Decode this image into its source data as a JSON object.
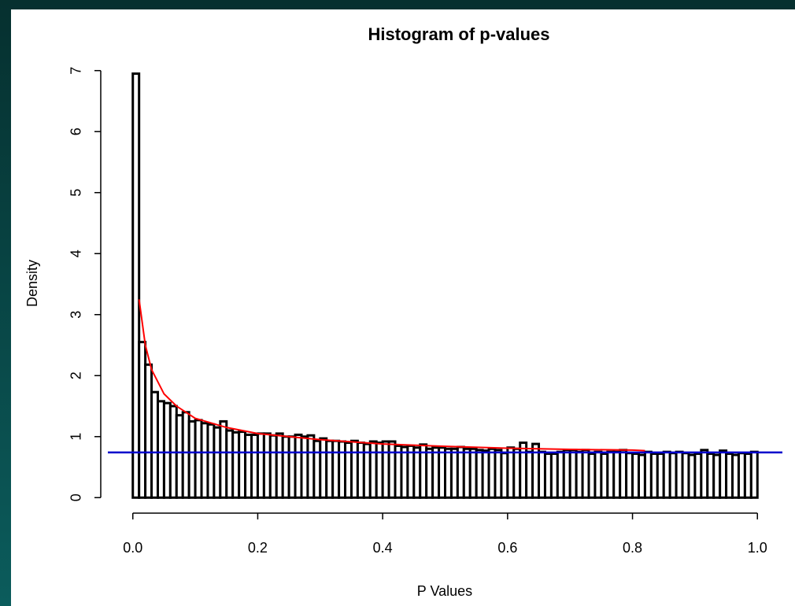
{
  "chart_data": {
    "type": "histogram",
    "title": "Histogram of p-values",
    "x_label": "P Values",
    "y_label": "Density",
    "bins": [
      0,
      0.01,
      0.02,
      0.03,
      0.04,
      0.05,
      0.06,
      0.07,
      0.08,
      0.09,
      0.1,
      0.11,
      0.12,
      0.13,
      0.14,
      0.15,
      0.16,
      0.17,
      0.18,
      0.19,
      0.2,
      0.21,
      0.22,
      0.23,
      0.24,
      0.25,
      0.26,
      0.27,
      0.28,
      0.29,
      0.3,
      0.31,
      0.32,
      0.33,
      0.34,
      0.35,
      0.36,
      0.37,
      0.38,
      0.39,
      0.4,
      0.41,
      0.42,
      0.43,
      0.44,
      0.45,
      0.46,
      0.47,
      0.48,
      0.49,
      0.5,
      0.51,
      0.52,
      0.53,
      0.54,
      0.55,
      0.56,
      0.57,
      0.58,
      0.59,
      0.6,
      0.61,
      0.62,
      0.63,
      0.64,
      0.65,
      0.66,
      0.67,
      0.68,
      0.69,
      0.7,
      0.71,
      0.72,
      0.73,
      0.74,
      0.75,
      0.76,
      0.77,
      0.78,
      0.79,
      0.8,
      0.81,
      0.82,
      0.83,
      0.84,
      0.85,
      0.86,
      0.87,
      0.88,
      0.89,
      0.9,
      0.91,
      0.92,
      0.93,
      0.94,
      0.95,
      0.96,
      0.97,
      0.98,
      0.99,
      1
    ],
    "values": [
      6.95,
      2.55,
      2.18,
      1.73,
      1.58,
      1.55,
      1.5,
      1.35,
      1.4,
      1.25,
      1.27,
      1.22,
      1.2,
      1.15,
      1.25,
      1.1,
      1.07,
      1.08,
      1.03,
      1.03,
      1.05,
      1.05,
      1.02,
      1.05,
      1.0,
      1.0,
      1.03,
      1.0,
      1.02,
      0.93,
      0.97,
      0.93,
      0.93,
      0.92,
      0.9,
      0.93,
      0.9,
      0.88,
      0.92,
      0.9,
      0.92,
      0.92,
      0.85,
      0.83,
      0.85,
      0.82,
      0.87,
      0.8,
      0.82,
      0.82,
      0.8,
      0.8,
      0.83,
      0.8,
      0.8,
      0.78,
      0.77,
      0.8,
      0.78,
      0.73,
      0.82,
      0.8,
      0.9,
      0.75,
      0.88,
      0.75,
      0.72,
      0.72,
      0.75,
      0.78,
      0.78,
      0.75,
      0.78,
      0.72,
      0.75,
      0.72,
      0.75,
      0.75,
      0.78,
      0.73,
      0.72,
      0.7,
      0.75,
      0.72,
      0.72,
      0.75,
      0.73,
      0.75,
      0.73,
      0.7,
      0.72,
      0.78,
      0.72,
      0.7,
      0.77,
      0.72,
      0.7,
      0.73,
      0.72,
      0.75
    ],
    "color": "#ffffff",
    "edge_color": "#000000",
    "lines": [
      {
        "color": "#ff0000",
        "x": [
          0.01,
          0.02,
          0.03,
          0.05,
          0.07,
          0.1,
          0.15,
          0.2,
          0.3,
          0.4,
          0.5,
          0.6,
          0.7,
          0.8,
          0.82
        ],
        "values": [
          3.25,
          2.5,
          2.1,
          1.7,
          1.5,
          1.3,
          1.15,
          1.05,
          0.95,
          0.88,
          0.84,
          0.81,
          0.79,
          0.78,
          0.77
        ]
      }
    ],
    "hline": {
      "value": 0.74,
      "color": "#0000cc"
    },
    "xlim": [
      -0.04,
      1.04
    ],
    "ylim": [
      -0.28,
      7.28
    ],
    "xticks": [
      {
        "value": 0,
        "label": "0.0"
      },
      0.2,
      0.4,
      0.6,
      0.8,
      {
        "value": 1,
        "label": "1.0"
      }
    ],
    "yticks": [
      0,
      1,
      2,
      3,
      4,
      5,
      6,
      7
    ]
  }
}
